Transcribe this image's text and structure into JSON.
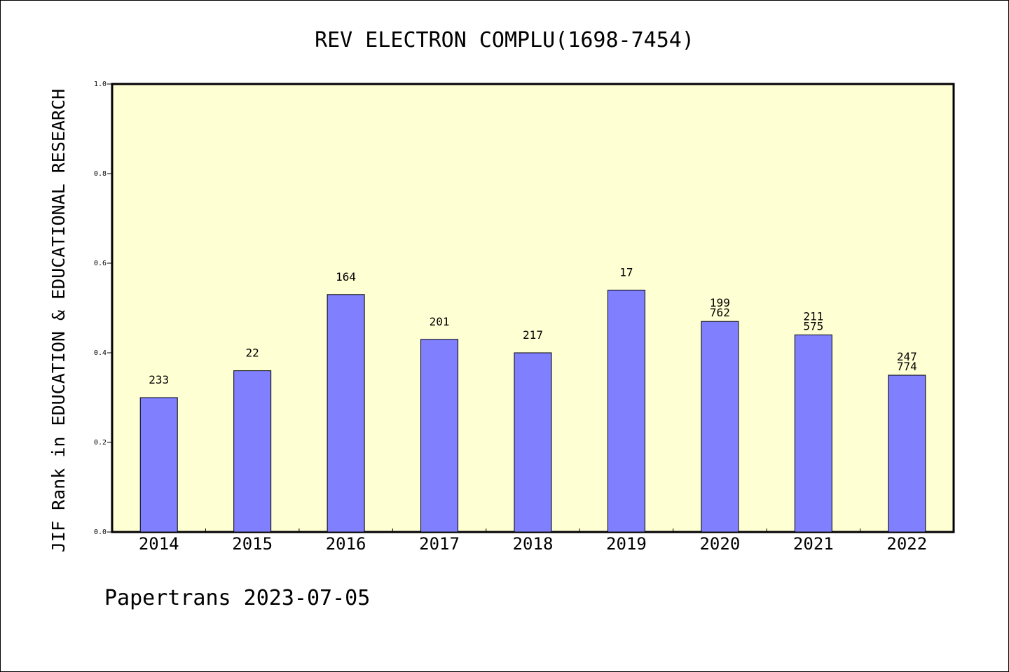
{
  "chart_data": {
    "type": "bar",
    "title": "REV ELECTRON COMPLU(1698-7454)",
    "ylabel": "JIF Rank in EDUCATION & EDUCATIONAL RESEARCH",
    "xlabel": "",
    "ylim": [
      0,
      1.0
    ],
    "yticks": [
      "0.0",
      "0.2",
      "0.4",
      "0.6",
      "0.8",
      "1.0"
    ],
    "categories": [
      "2014",
      "2015",
      "2016",
      "2017",
      "2018",
      "2019",
      "2020",
      "2021",
      "2022"
    ],
    "values": [
      0.3,
      0.36,
      0.53,
      0.43,
      0.4,
      0.54,
      0.47,
      0.44,
      0.35
    ],
    "labels": [
      [
        "233"
      ],
      [
        "22"
      ],
      [
        "164"
      ],
      [
        "201"
      ],
      [
        "217"
      ],
      [
        "17"
      ],
      [
        "199",
        "762"
      ],
      [
        "211",
        "575"
      ],
      [
        "247",
        "774"
      ]
    ],
    "grid": false,
    "footer": "Papertrans 2023-07-05",
    "colors": {
      "bar": "#8080ff",
      "plot_background": "#ffffd4",
      "axis": "#000000"
    }
  }
}
